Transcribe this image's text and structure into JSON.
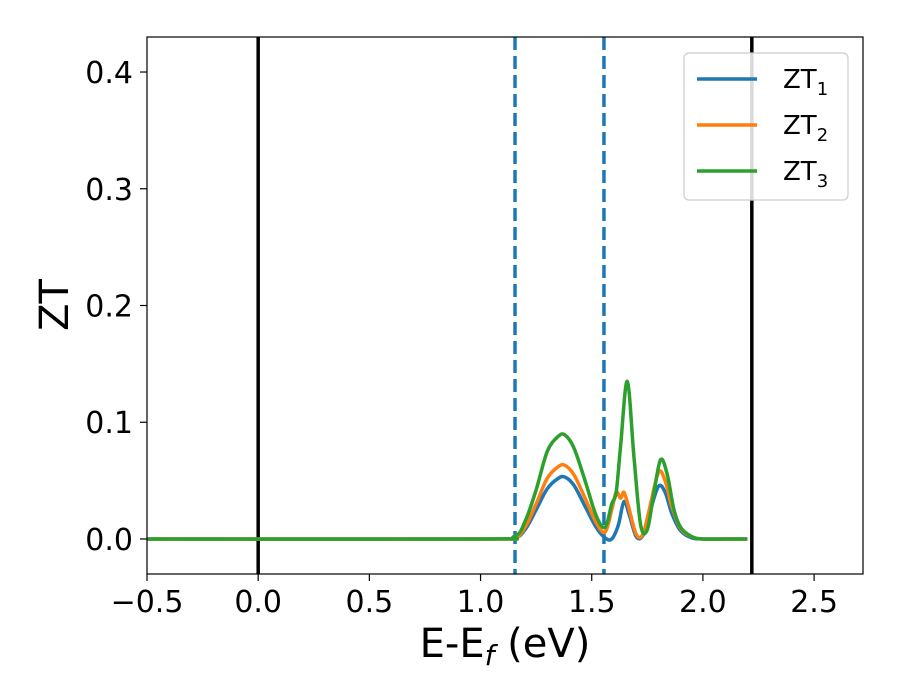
{
  "chart_data": {
    "type": "line",
    "title": "",
    "xlabel": "E-E",
    "xlabel_sub": "f",
    "xlabel_unit": " (eV)",
    "ylabel": "ZT",
    "xlim": [
      -0.5,
      2.72
    ],
    "ylim": [
      -0.03,
      0.43
    ],
    "xticks": [
      -0.5,
      0.0,
      0.5,
      1.0,
      1.5,
      2.0,
      2.5
    ],
    "xtick_labels": [
      "−0.5",
      "0.0",
      "0.5",
      "1.0",
      "1.5",
      "2.0",
      "2.5"
    ],
    "yticks": [
      0.0,
      0.1,
      0.2,
      0.3,
      0.4
    ],
    "ytick_labels": [
      "0.0",
      "0.1",
      "0.2",
      "0.3",
      "0.4"
    ],
    "grid": false,
    "legend_position": "top-right",
    "reference_lines": [
      {
        "x": 0.0,
        "style": "solid",
        "color": "#000000"
      },
      {
        "x": 2.22,
        "style": "solid",
        "color": "#000000"
      },
      {
        "x": 1.155,
        "style": "dashed",
        "color": "#1f77b4"
      },
      {
        "x": 1.555,
        "style": "dashed",
        "color": "#1f77b4"
      }
    ],
    "series": [
      {
        "name": "ZT",
        "sub": "1",
        "color": "#1f77b4",
        "x": [
          -0.5,
          1.0,
          1.15,
          1.2,
          1.25,
          1.3,
          1.35,
          1.38,
          1.42,
          1.47,
          1.52,
          1.56,
          1.59,
          1.62,
          1.645,
          1.67,
          1.7,
          1.73,
          1.76,
          1.8,
          1.83,
          1.86,
          1.9,
          1.95,
          2.0,
          2.1,
          2.2
        ],
        "y": [
          0.0,
          0.0,
          0.001,
          0.008,
          0.025,
          0.043,
          0.052,
          0.053,
          0.046,
          0.028,
          0.01,
          0.001,
          0.0,
          0.012,
          0.032,
          0.02,
          0.002,
          0.003,
          0.022,
          0.045,
          0.04,
          0.022,
          0.007,
          0.001,
          0.0,
          0.0,
          0.0
        ]
      },
      {
        "name": "ZT",
        "sub": "2",
        "color": "#ff7f0e",
        "x": [
          -0.5,
          1.0,
          1.15,
          1.2,
          1.25,
          1.3,
          1.35,
          1.38,
          1.42,
          1.47,
          1.52,
          1.56,
          1.59,
          1.61,
          1.63,
          1.645,
          1.665,
          1.7,
          1.73,
          1.76,
          1.8,
          1.83,
          1.86,
          1.9,
          1.95,
          2.0,
          2.1,
          2.2
        ],
        "y": [
          0.0,
          0.0,
          0.001,
          0.01,
          0.03,
          0.052,
          0.062,
          0.063,
          0.055,
          0.035,
          0.014,
          0.006,
          0.025,
          0.04,
          0.035,
          0.04,
          0.028,
          0.004,
          0.004,
          0.026,
          0.057,
          0.05,
          0.028,
          0.009,
          0.002,
          0.0,
          0.0,
          0.0
        ]
      },
      {
        "name": "ZT",
        "sub": "3",
        "color": "#2ca02c",
        "x": [
          -0.5,
          1.0,
          1.15,
          1.2,
          1.25,
          1.3,
          1.35,
          1.38,
          1.42,
          1.47,
          1.52,
          1.56,
          1.59,
          1.61,
          1.63,
          1.66,
          1.69,
          1.72,
          1.75,
          1.78,
          1.81,
          1.84,
          1.87,
          1.9,
          1.95,
          2.0,
          2.1,
          2.2
        ],
        "y": [
          0.0,
          0.0,
          0.002,
          0.015,
          0.042,
          0.075,
          0.088,
          0.089,
          0.078,
          0.05,
          0.02,
          0.01,
          0.03,
          0.04,
          0.08,
          0.135,
          0.07,
          0.012,
          0.008,
          0.04,
          0.068,
          0.055,
          0.025,
          0.01,
          0.002,
          0.0,
          0.0,
          0.0
        ]
      }
    ]
  }
}
